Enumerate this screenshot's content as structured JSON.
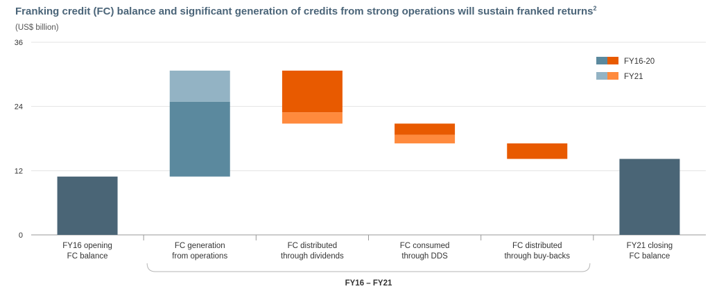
{
  "title": "Franking credit (FC) balance and significant generation of credits from strong operations will sustain franked returns",
  "title_sup": "2",
  "subtitle": "(US$ billion)",
  "group_label": "FY16 – FY21",
  "colors": {
    "total": "#4a6576",
    "ops_fy16_20": "#5b899e",
    "ops_fy21": "#93b3c4",
    "dist_fy16_20": "#e85a00",
    "dist_fy21": "#ff8a3d",
    "grid": "#e3e3e3",
    "axis": "#999999"
  },
  "chart_data": {
    "type": "bar",
    "subtype": "waterfall",
    "ylim": [
      0,
      36
    ],
    "yticks": [
      0,
      12,
      24,
      36
    ],
    "grid": true,
    "legend_position": "top-right",
    "legend": [
      {
        "label": "FY16-20",
        "colors": [
          "#5b899e",
          "#e85a00"
        ]
      },
      {
        "label": "FY21",
        "colors": [
          "#93b3c4",
          "#ff8a3d"
        ]
      }
    ],
    "categories": [
      [
        "FY16 opening",
        "FC balance"
      ],
      [
        "FC generation",
        "from operations"
      ],
      [
        "FC distributed",
        "through dividends"
      ],
      [
        "FC consumed",
        "through DDS"
      ],
      [
        "FC distributed",
        "through buy-backs"
      ],
      [
        "FY21 closing",
        "FC balance"
      ]
    ],
    "segments": [
      [
        {
          "from": 0,
          "to": 10.9,
          "kind": "total"
        }
      ],
      [
        {
          "from": 10.9,
          "to": 24.9,
          "kind": "ops_fy16_20"
        },
        {
          "from": 24.9,
          "to": 30.7,
          "kind": "ops_fy21"
        }
      ],
      [
        {
          "from": 22.9,
          "to": 30.7,
          "kind": "dist_fy16_20"
        },
        {
          "from": 20.8,
          "to": 22.9,
          "kind": "dist_fy21"
        }
      ],
      [
        {
          "from": 18.7,
          "to": 20.8,
          "kind": "dist_fy16_20"
        },
        {
          "from": 17.1,
          "to": 18.7,
          "kind": "dist_fy21"
        }
      ],
      [
        {
          "from": 14.2,
          "to": 17.1,
          "kind": "dist_fy16_20"
        }
      ],
      [
        {
          "from": 0,
          "to": 14.2,
          "kind": "total"
        }
      ]
    ]
  }
}
